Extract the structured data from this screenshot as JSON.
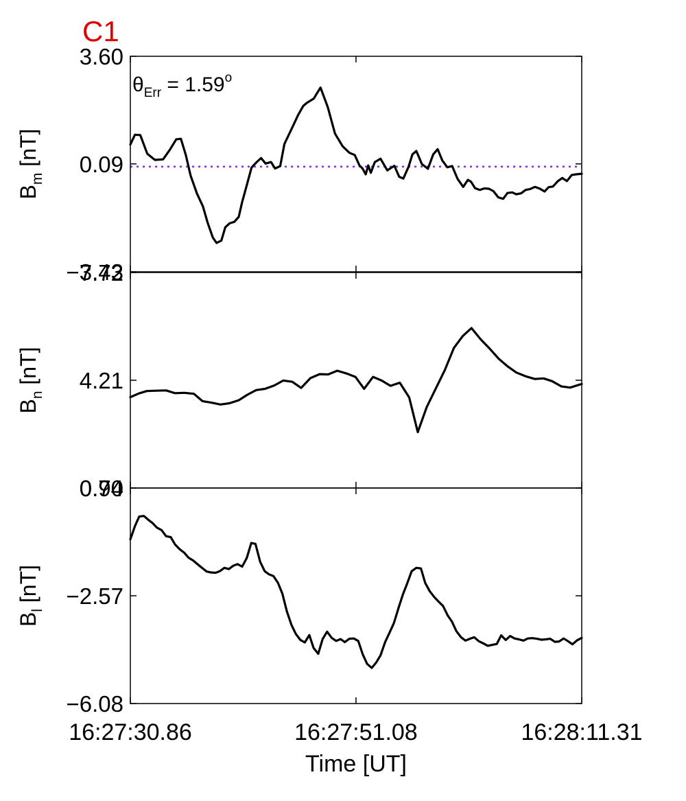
{
  "spacecraft_label": "C1",
  "annotation": {
    "theta": "θ",
    "subscript": "Err",
    "equals": " =  ",
    "value": "1.59",
    "degree": "o"
  },
  "colors": {
    "spacecraft_label": "#e00000",
    "trace": "#000000",
    "reference_line": "#8a2be2"
  },
  "chart_data": {
    "type": "line",
    "xlabel": "Time [UT]",
    "x_tick_labels": [
      "16:27:30.86",
      "16:27:51.08",
      "16:28:11.31"
    ],
    "x_ticks": [
      0,
      20.22,
      40.45
    ],
    "xlim": [
      0,
      40.45
    ],
    "panels": [
      {
        "ylabel_main": "B",
        "ylabel_sub": "m",
        "ylabel_unit": " [nT]",
        "ylim": [
          -3.43,
          3.6
        ],
        "y_tick_labels": [
          "3.60",
          "0.09",
          "−3.43"
        ],
        "y_ticks": [
          3.6,
          0.09,
          -3.43
        ],
        "reference_line": 0.0,
        "x": [
          0,
          0.41,
          0.89,
          1.52,
          2.2,
          2.94,
          3.54,
          4.11,
          4.53,
          4.98,
          5.4,
          5.96,
          6.51,
          6.91,
          7.39,
          7.73,
          8.16,
          8.51,
          8.89,
          9.32,
          9.71,
          10.01,
          10.44,
          10.86,
          11.3,
          11.72,
          12.12,
          12.61,
          12.97,
          13.43,
          13.81,
          14.42,
          15.04,
          15.49,
          15.82,
          16.44,
          17.04,
          17.69,
          18.34,
          19.03,
          19.64,
          20.11,
          20.53,
          20.81,
          21.09,
          21.32,
          21.55,
          21.91,
          22.42,
          23.03,
          23.66,
          24.09,
          24.46,
          24.93,
          25.28,
          25.63,
          26.13,
          26.67,
          27.14,
          27.54,
          27.96,
          28.41,
          28.84,
          29.33,
          29.83,
          30.25,
          30.53,
          30.89,
          31.32,
          31.71,
          32.13,
          32.54,
          32.97,
          33.41,
          33.79,
          34.22,
          34.58,
          35.01,
          35.42,
          35.83,
          36.26,
          36.71,
          37.12,
          37.49,
          37.87,
          38.29,
          38.71,
          39.12,
          39.56,
          39.94,
          40.45
        ],
        "y": [
          0.72,
          1.04,
          1.03,
          0.42,
          0.22,
          0.24,
          0.55,
          0.89,
          0.91,
          0.37,
          -0.29,
          -0.87,
          -1.3,
          -1.81,
          -2.31,
          -2.49,
          -2.41,
          -1.98,
          -1.85,
          -1.8,
          -1.64,
          -1.17,
          -0.6,
          -0.03,
          0.14,
          0.28,
          0.1,
          0.15,
          -0.06,
          0.02,
          0.74,
          1.21,
          1.69,
          1.98,
          2.08,
          2.22,
          2.58,
          1.94,
          1.08,
          0.66,
          0.45,
          0.38,
          0.04,
          -0.06,
          -0.25,
          0.04,
          -0.2,
          0.15,
          0.26,
          -0.12,
          0.03,
          -0.33,
          -0.39,
          -0.01,
          0.4,
          0.51,
          0.08,
          -0.07,
          0.4,
          0.57,
          0.2,
          -0.02,
          0.02,
          -0.4,
          -0.66,
          -0.43,
          -0.49,
          -0.7,
          -0.76,
          -0.71,
          -0.72,
          -0.8,
          -1.0,
          -1.05,
          -0.86,
          -0.84,
          -0.9,
          -0.87,
          -0.76,
          -0.73,
          -0.66,
          -0.72,
          -0.81,
          -0.67,
          -0.65,
          -0.48,
          -0.37,
          -0.47,
          -0.27,
          -0.25,
          -0.23
        ]
      },
      {
        "ylabel_main": "B",
        "ylabel_sub": "n",
        "ylabel_unit": " [nT]",
        "ylim": [
          0.7,
          7.72
        ],
        "y_tick_labels": [
          "7.72",
          "4.21",
          "0.70"
        ],
        "y_ticks": [
          7.72,
          4.21,
          0.7
        ],
        "x": [
          0,
          0.77,
          1.48,
          2.36,
          3.2,
          4.01,
          4.84,
          5.69,
          6.46,
          7.29,
          8.07,
          8.88,
          9.71,
          10.5,
          11.28,
          12.07,
          12.9,
          13.71,
          14.51,
          15.31,
          16.14,
          16.96,
          17.73,
          18.54,
          19.39,
          20.17,
          20.95,
          21.75,
          22.52,
          23.31,
          24.15,
          24.99,
          25.76,
          26.56,
          27.33,
          28.19,
          28.99,
          29.79,
          30.57,
          31.4,
          32.2,
          33.01,
          33.78,
          34.6,
          35.42,
          36.25,
          37.03,
          37.79,
          38.62,
          39.41,
          40.45
        ],
        "y": [
          3.66,
          3.78,
          3.86,
          3.87,
          3.88,
          3.79,
          3.8,
          3.77,
          3.53,
          3.48,
          3.42,
          3.46,
          3.56,
          3.74,
          3.89,
          3.93,
          4.04,
          4.2,
          4.16,
          3.96,
          4.28,
          4.41,
          4.4,
          4.52,
          4.43,
          4.32,
          3.93,
          4.32,
          4.2,
          4.03,
          4.13,
          3.65,
          2.52,
          3.34,
          3.91,
          4.55,
          5.26,
          5.65,
          5.91,
          5.54,
          5.24,
          4.91,
          4.67,
          4.46,
          4.34,
          4.25,
          4.27,
          4.18,
          4.01,
          3.97,
          4.09
        ]
      },
      {
        "ylabel_main": "B",
        "ylabel_sub": "l",
        "ylabel_unit": " [nT]",
        "ylim": [
          -6.08,
          0.94
        ],
        "y_tick_labels": [
          "0.94",
          "−2.57",
          "−6.08"
        ],
        "y_ticks": [
          0.94,
          -2.57,
          -6.08
        ],
        "x": [
          0,
          0.41,
          0.79,
          1.21,
          1.6,
          2.01,
          2.38,
          2.8,
          3.2,
          3.62,
          4.01,
          4.41,
          4.84,
          5.21,
          5.63,
          6.01,
          6.42,
          6.84,
          7.22,
          7.64,
          8.01,
          8.43,
          8.83,
          9.23,
          9.61,
          10.02,
          10.43,
          10.84,
          11.21,
          11.63,
          12.04,
          12.42,
          12.83,
          13.23,
          13.62,
          14.03,
          14.44,
          14.84,
          15.24,
          15.63,
          16.04,
          16.42,
          16.84,
          17.23,
          17.63,
          18.04,
          18.44,
          18.83,
          19.22,
          19.62,
          20.03,
          20.42,
          20.83,
          21.22,
          21.63,
          22.04,
          22.42,
          22.83,
          23.22,
          23.62,
          24.03,
          24.41,
          24.82,
          25.21,
          25.63,
          26.04,
          26.42,
          26.83,
          27.23,
          27.62,
          28.02,
          28.44,
          28.82,
          29.21,
          29.63,
          30.03,
          30.43,
          30.82,
          31.22,
          31.62,
          32.03,
          32.42,
          32.84,
          33.23,
          33.64,
          34.04,
          34.43,
          34.82,
          35.23,
          35.62,
          36.02,
          36.42,
          36.84,
          37.24,
          37.62,
          38.04,
          38.43,
          38.83,
          39.22,
          39.62,
          40.03,
          40.45
        ],
        "y": [
          -0.73,
          -0.3,
          0.01,
          0.03,
          -0.09,
          -0.21,
          -0.35,
          -0.43,
          -0.63,
          -0.66,
          -0.9,
          -1.05,
          -1.17,
          -1.33,
          -1.42,
          -1.54,
          -1.66,
          -1.78,
          -1.81,
          -1.82,
          -1.77,
          -1.66,
          -1.7,
          -1.59,
          -1.54,
          -1.62,
          -1.34,
          -0.85,
          -0.88,
          -1.46,
          -1.77,
          -1.87,
          -1.93,
          -2.15,
          -2.5,
          -3.08,
          -3.52,
          -3.82,
          -4.01,
          -4.09,
          -3.85,
          -4.27,
          -4.46,
          -3.98,
          -3.74,
          -3.94,
          -4.04,
          -3.98,
          -4.08,
          -3.97,
          -3.96,
          -4.04,
          -4.48,
          -4.79,
          -4.92,
          -4.74,
          -4.51,
          -4.08,
          -3.78,
          -3.46,
          -2.97,
          -2.54,
          -2.16,
          -1.77,
          -1.66,
          -1.68,
          -2.15,
          -2.42,
          -2.61,
          -2.76,
          -2.9,
          -3.21,
          -3.41,
          -3.72,
          -3.92,
          -4.03,
          -3.97,
          -3.92,
          -4.05,
          -4.12,
          -4.2,
          -4.17,
          -4.14,
          -3.86,
          -4.01,
          -3.88,
          -3.96,
          -3.99,
          -4.03,
          -3.96,
          -3.95,
          -3.97,
          -4.0,
          -3.99,
          -3.97,
          -4.07,
          -4.06,
          -3.96,
          -4.05,
          -4.15,
          -4.02,
          -3.94
        ]
      }
    ]
  }
}
